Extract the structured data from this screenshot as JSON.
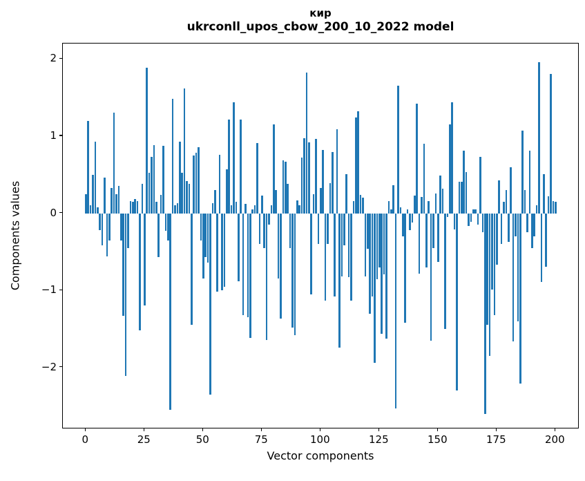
{
  "figure": {
    "title_line1": "кир",
    "title_line2": "ukrconll_upos_cbow_200_10_2022 model"
  },
  "chart_data": {
    "type": "bar",
    "title": "кир",
    "subtitle": "ukrconll_upos_cbow_200_10_2022 model",
    "xlabel": "Vector components",
    "ylabel": "Components values",
    "legend": null,
    "grid": false,
    "bar_color": "#1f77b4",
    "spine_color": "#000000",
    "x_start": 0,
    "x_step": 1,
    "n_bars": 201,
    "x_ticks": [
      0,
      25,
      50,
      75,
      100,
      125,
      150,
      175,
      200
    ],
    "y_ticks": [
      2,
      1,
      0,
      -1,
      -2
    ],
    "xlim": [
      -9.8,
      210.2
    ],
    "ylim": [
      -2.8,
      2.2
    ],
    "values": [
      0.25,
      1.2,
      0.1,
      0.5,
      0.93,
      0.08,
      -0.22,
      -0.42,
      0.46,
      -0.56,
      -0.35,
      0.33,
      1.3,
      0.25,
      0.35,
      -0.35,
      -1.33,
      -2.11,
      -0.45,
      0.16,
      0.15,
      0.18,
      0.16,
      -1.52,
      0.38,
      -1.2,
      1.89,
      0.52,
      0.73,
      0.88,
      0.15,
      -0.57,
      0.24,
      0.87,
      -0.23,
      -0.35,
      -2.55,
      1.48,
      0.1,
      0.13,
      0.93,
      0.52,
      1.62,
      0.42,
      0.38,
      -1.45,
      0.75,
      0.78,
      0.86,
      -0.35,
      -0.85,
      -0.57,
      -0.64,
      -2.35,
      0.13,
      0.3,
      -1.02,
      0.76,
      -1.0,
      -0.95,
      0.57,
      1.21,
      0.1,
      1.44,
      0.15,
      -0.88,
      1.21,
      -1.32,
      0.12,
      -1.35,
      -1.62,
      0.05,
      0.1,
      0.91,
      -0.4,
      0.23,
      -0.45,
      -1.64,
      -0.15,
      0.1,
      1.15,
      0.3,
      -0.85,
      -1.37,
      0.69,
      0.67,
      0.38,
      -0.45,
      -1.48,
      -1.58,
      0.17,
      0.1,
      0.72,
      0.97,
      1.82,
      0.92,
      -1.05,
      0.25,
      0.96,
      -0.4,
      0.33,
      0.82,
      -1.13,
      -0.4,
      0.39,
      0.79,
      -1.08,
      1.09,
      -1.74,
      -0.82,
      -0.42,
      0.51,
      -0.83,
      -1.13,
      0.16,
      1.24,
      1.32,
      0.24,
      0.2,
      -0.82,
      -0.46,
      -1.3,
      -1.08,
      -1.94,
      -0.86,
      -0.7,
      -1.56,
      -0.79,
      -1.63,
      0.16,
      0.05,
      0.36,
      -2.53,
      1.65,
      0.08,
      -0.3,
      -1.42,
      0.05,
      -0.22,
      -0.12,
      0.23,
      1.42,
      -0.78,
      0.21,
      0.9,
      -0.7,
      0.16,
      -1.65,
      -0.45,
      0.26,
      -0.63,
      0.49,
      0.32,
      -1.5,
      -0.05,
      1.15,
      1.44,
      -0.21,
      -2.3,
      0.41,
      0.41,
      0.81,
      0.53,
      -0.17,
      -0.11,
      0.05,
      0.05,
      -0.15,
      0.73,
      -0.25,
      -2.6,
      -1.45,
      -1.85,
      -0.99,
      -1.32,
      -0.67,
      0.43,
      -0.4,
      0.15,
      0.3,
      -0.37,
      0.6,
      -1.66,
      -0.3,
      -1.4,
      -2.21,
      1.07,
      0.3,
      -0.25,
      0.81,
      -0.45,
      -0.3,
      0.1,
      1.96,
      -0.89,
      0.51,
      -0.69,
      0.22,
      1.81,
      0.16,
      0.15
    ]
  }
}
